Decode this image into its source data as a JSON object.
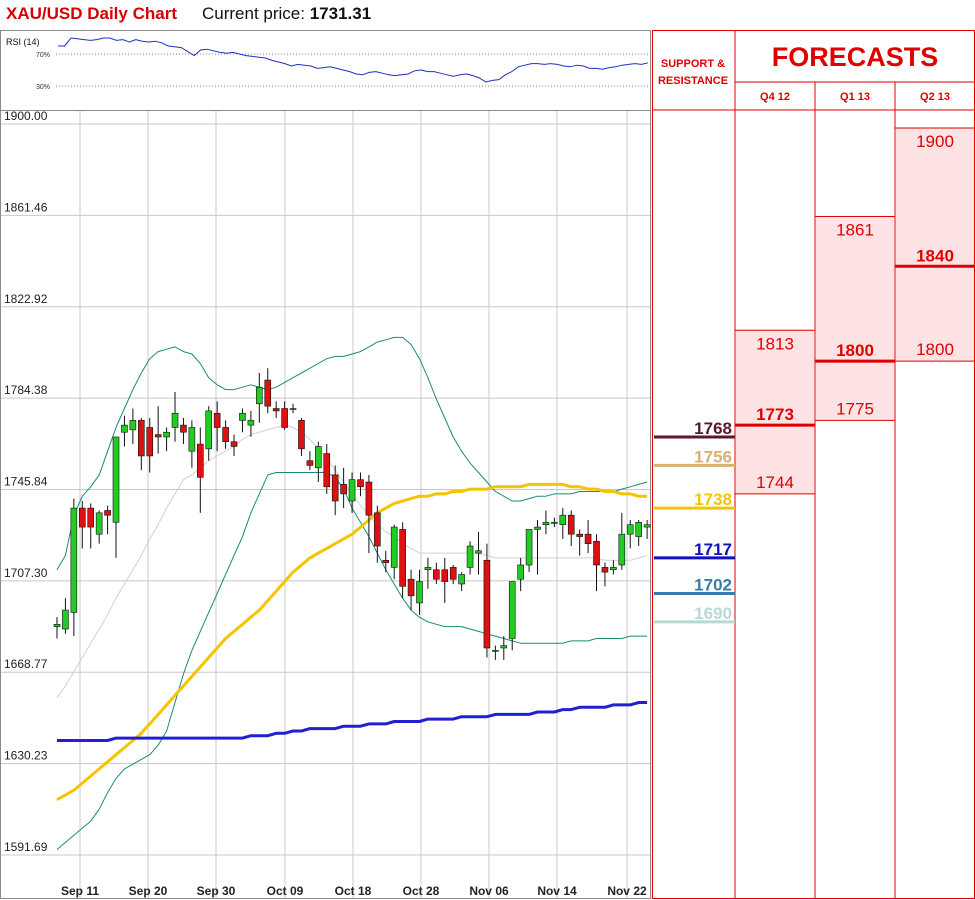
{
  "header": {
    "title": "XAU/USD Daily Chart",
    "price_label": "Current price:",
    "price_value": "1731.31"
  },
  "rsi": {
    "label": "RSI (14)",
    "levels": [
      "70%",
      "30%"
    ],
    "values": [
      80,
      80,
      90,
      89,
      88,
      87,
      88,
      90,
      90,
      87,
      88,
      85,
      88,
      86,
      85,
      86,
      84,
      80,
      79,
      78,
      73,
      68,
      75,
      76,
      74,
      72,
      71,
      72,
      70,
      68,
      67,
      66,
      65,
      62,
      60,
      58,
      55,
      57,
      56,
      55,
      52,
      53,
      54,
      52,
      50,
      48,
      45,
      44,
      47,
      48,
      46,
      44,
      43,
      44,
      45,
      49,
      50,
      48,
      48,
      46,
      44,
      42,
      44,
      45,
      43,
      40,
      35,
      37,
      38,
      44,
      48,
      54,
      56,
      58,
      58,
      57,
      58,
      57,
      55,
      54,
      56,
      55,
      52,
      52,
      51,
      53,
      54,
      56,
      57,
      58,
      57,
      59
    ]
  },
  "chart_data": {
    "type": "candlestick",
    "title": "XAU/USD Daily Chart",
    "ylim": [
      1591.69,
      1900.0
    ],
    "y_ticks": [
      "1900.00",
      "1861.46",
      "1822.92",
      "1784.38",
      "1745.84",
      "1707.30",
      "1668.77",
      "1630.23",
      "1591.69"
    ],
    "x_ticks": [
      "Sep 11",
      "Sep 20",
      "Sep 30",
      "Oct 09",
      "Oct 18",
      "Oct 28",
      "Nov 06",
      "Nov 14",
      "Nov 22"
    ],
    "grid": true,
    "candles": [
      {
        "o": 1688,
        "h": 1692,
        "l": 1683,
        "c": 1689
      },
      {
        "o": 1687,
        "h": 1700,
        "l": 1685,
        "c": 1695
      },
      {
        "o": 1694,
        "h": 1742,
        "l": 1684,
        "c": 1738
      },
      {
        "o": 1738,
        "h": 1741,
        "l": 1721,
        "c": 1730
      },
      {
        "o": 1738,
        "h": 1740,
        "l": 1721,
        "c": 1730
      },
      {
        "o": 1727,
        "h": 1737,
        "l": 1723,
        "c": 1736
      },
      {
        "o": 1737,
        "h": 1739,
        "l": 1727,
        "c": 1735
      },
      {
        "o": 1732,
        "h": 1768,
        "l": 1717,
        "c": 1768
      },
      {
        "o": 1770,
        "h": 1777,
        "l": 1764,
        "c": 1773
      },
      {
        "o": 1771,
        "h": 1780,
        "l": 1765,
        "c": 1775
      },
      {
        "o": 1775,
        "h": 1776,
        "l": 1754,
        "c": 1760
      },
      {
        "o": 1772,
        "h": 1776,
        "l": 1753,
        "c": 1760
      },
      {
        "o": 1769,
        "h": 1781,
        "l": 1761,
        "c": 1768
      },
      {
        "o": 1768,
        "h": 1772,
        "l": 1762,
        "c": 1770
      },
      {
        "o": 1772,
        "h": 1787,
        "l": 1766,
        "c": 1778
      },
      {
        "o": 1773,
        "h": 1776,
        "l": 1765,
        "c": 1770
      },
      {
        "o": 1762,
        "h": 1775,
        "l": 1755,
        "c": 1772
      },
      {
        "o": 1765,
        "h": 1772,
        "l": 1736,
        "c": 1751
      },
      {
        "o": 1763,
        "h": 1781,
        "l": 1758,
        "c": 1779
      },
      {
        "o": 1778,
        "h": 1783,
        "l": 1762,
        "c": 1772
      },
      {
        "o": 1772,
        "h": 1775,
        "l": 1763,
        "c": 1766
      },
      {
        "o": 1766,
        "h": 1769,
        "l": 1760,
        "c": 1764
      },
      {
        "o": 1775,
        "h": 1780,
        "l": 1770,
        "c": 1778
      },
      {
        "o": 1773,
        "h": 1779,
        "l": 1768,
        "c": 1775
      },
      {
        "o": 1782,
        "h": 1795,
        "l": 1774,
        "c": 1789
      },
      {
        "o": 1792,
        "h": 1797,
        "l": 1778,
        "c": 1781
      },
      {
        "o": 1780,
        "h": 1783,
        "l": 1776,
        "c": 1779
      },
      {
        "o": 1780,
        "h": 1783,
        "l": 1771,
        "c": 1772
      },
      {
        "o": 1780,
        "h": 1782,
        "l": 1778,
        "c": 1780
      },
      {
        "o": 1775,
        "h": 1776,
        "l": 1760,
        "c": 1763
      },
      {
        "o": 1758,
        "h": 1762,
        "l": 1754,
        "c": 1756
      },
      {
        "o": 1755,
        "h": 1766,
        "l": 1749,
        "c": 1764
      },
      {
        "o": 1761,
        "h": 1765,
        "l": 1744,
        "c": 1747
      },
      {
        "o": 1752,
        "h": 1756,
        "l": 1735,
        "c": 1741
      },
      {
        "o": 1748,
        "h": 1755,
        "l": 1738,
        "c": 1744
      },
      {
        "o": 1741,
        "h": 1753,
        "l": 1736,
        "c": 1750
      },
      {
        "o": 1750,
        "h": 1753,
        "l": 1743,
        "c": 1747
      },
      {
        "o": 1749,
        "h": 1752,
        "l": 1719,
        "c": 1735
      },
      {
        "o": 1736,
        "h": 1739,
        "l": 1715,
        "c": 1722
      },
      {
        "o": 1716,
        "h": 1720,
        "l": 1711,
        "c": 1715
      },
      {
        "o": 1713,
        "h": 1731,
        "l": 1708,
        "c": 1730
      },
      {
        "o": 1729,
        "h": 1732,
        "l": 1700,
        "c": 1705
      },
      {
        "o": 1708,
        "h": 1712,
        "l": 1695,
        "c": 1701
      },
      {
        "o": 1698,
        "h": 1712,
        "l": 1693,
        "c": 1707
      },
      {
        "o": 1712,
        "h": 1717,
        "l": 1704,
        "c": 1713
      },
      {
        "o": 1712,
        "h": 1715,
        "l": 1706,
        "c": 1708
      },
      {
        "o": 1712,
        "h": 1717,
        "l": 1698,
        "c": 1707
      },
      {
        "o": 1713,
        "h": 1714,
        "l": 1706,
        "c": 1708
      },
      {
        "o": 1706,
        "h": 1711,
        "l": 1703,
        "c": 1710
      },
      {
        "o": 1713,
        "h": 1724,
        "l": 1710,
        "c": 1722
      },
      {
        "o": 1719,
        "h": 1728,
        "l": 1710,
        "c": 1720
      },
      {
        "o": 1716,
        "h": 1723,
        "l": 1675,
        "c": 1679
      },
      {
        "o": 1678,
        "h": 1680,
        "l": 1674,
        "c": 1678
      },
      {
        "o": 1679,
        "h": 1684,
        "l": 1674,
        "c": 1680
      },
      {
        "o": 1683,
        "h": 1707,
        "l": 1678,
        "c": 1707
      },
      {
        "o": 1708,
        "h": 1717,
        "l": 1703,
        "c": 1714
      },
      {
        "o": 1714,
        "h": 1729,
        "l": 1711,
        "c": 1729
      },
      {
        "o": 1729,
        "h": 1733,
        "l": 1710,
        "c": 1730
      },
      {
        "o": 1731,
        "h": 1737,
        "l": 1727,
        "c": 1732
      },
      {
        "o": 1732,
        "h": 1734,
        "l": 1730,
        "c": 1732
      },
      {
        "o": 1731,
        "h": 1738,
        "l": 1725,
        "c": 1735
      },
      {
        "o": 1735,
        "h": 1737,
        "l": 1722,
        "c": 1727
      },
      {
        "o": 1727,
        "h": 1729,
        "l": 1718,
        "c": 1726
      },
      {
        "o": 1727,
        "h": 1733,
        "l": 1719,
        "c": 1723
      },
      {
        "o": 1724,
        "h": 1727,
        "l": 1703,
        "c": 1714
      },
      {
        "o": 1713,
        "h": 1715,
        "l": 1705,
        "c": 1711
      },
      {
        "o": 1712,
        "h": 1716,
        "l": 1710,
        "c": 1713
      },
      {
        "o": 1714,
        "h": 1736,
        "l": 1712,
        "c": 1727
      },
      {
        "o": 1727,
        "h": 1733,
        "l": 1721,
        "c": 1731
      },
      {
        "o": 1726,
        "h": 1733,
        "l": 1722,
        "c": 1732
      },
      {
        "o": 1730,
        "h": 1733,
        "l": 1725,
        "c": 1731
      }
    ],
    "bollinger_upper": [
      1712,
      1718,
      1735,
      1743,
      1747,
      1752,
      1762,
      1772,
      1780,
      1788,
      1795,
      1801,
      1804,
      1805,
      1806,
      1804,
      1803,
      1799,
      1793,
      1790,
      1788,
      1788,
      1789,
      1790,
      1789,
      1788,
      1789,
      1791,
      1793,
      1795,
      1797,
      1799,
      1801,
      1802,
      1802,
      1803,
      1804,
      1806,
      1808,
      1809,
      1810,
      1810,
      1807,
      1801,
      1793,
      1784,
      1776,
      1768,
      1762,
      1757,
      1753,
      1749,
      1745,
      1743,
      1741,
      1741,
      1742,
      1743,
      1743,
      1744,
      1744,
      1744,
      1745,
      1745,
      1745,
      1745,
      1745,
      1746,
      1747,
      1748,
      1749
    ],
    "bollinger_mid": [
      1658,
      1663,
      1669,
      1675,
      1681,
      1687,
      1693,
      1700,
      1706,
      1712,
      1718,
      1725,
      1731,
      1738,
      1744,
      1750,
      1752,
      1755,
      1758,
      1760,
      1762,
      1764,
      1767,
      1769,
      1770,
      1771,
      1772,
      1773,
      1772,
      1770,
      1767,
      1763,
      1759,
      1754,
      1749,
      1744,
      1739,
      1735,
      1731,
      1728,
      1726,
      1723,
      1721,
      1719,
      1719,
      1719,
      1719,
      1719,
      1719,
      1719,
      1719,
      1718,
      1717,
      1717,
      1717,
      1717,
      1717,
      1717,
      1717,
      1717,
      1717,
      1717,
      1717,
      1717,
      1717,
      1716,
      1716,
      1716,
      1716,
      1717,
      1718
    ],
    "bollinger_lower": [
      1594,
      1597,
      1600,
      1603,
      1606,
      1611,
      1618,
      1624,
      1628,
      1630,
      1632,
      1634,
      1638,
      1644,
      1656,
      1668,
      1678,
      1686,
      1694,
      1702,
      1710,
      1718,
      1726,
      1736,
      1744,
      1752,
      1753,
      1753,
      1753,
      1753,
      1753,
      1753,
      1753,
      1751,
      1746,
      1738,
      1732,
      1726,
      1719,
      1712,
      1706,
      1700,
      1695,
      1692,
      1690,
      1689,
      1688,
      1688,
      1688,
      1687,
      1686,
      1685,
      1684,
      1683,
      1682,
      1681,
      1681,
      1681,
      1681,
      1681,
      1681,
      1682,
      1682,
      1682,
      1683,
      1683,
      1683,
      1683,
      1684,
      1684,
      1684
    ],
    "ma_yellow": [
      1615,
      1617,
      1619,
      1622,
      1625,
      1628,
      1631,
      1634,
      1637,
      1640,
      1643,
      1647,
      1651,
      1655,
      1659,
      1663,
      1667,
      1671,
      1675,
      1679,
      1683,
      1686,
      1689,
      1692,
      1695,
      1699,
      1703,
      1707,
      1711,
      1714,
      1717,
      1719,
      1721,
      1723,
      1725,
      1727,
      1730,
      1733,
      1736,
      1738,
      1740,
      1741,
      1742,
      1743,
      1743,
      1744,
      1744,
      1745,
      1745,
      1746,
      1746,
      1746,
      1747,
      1747,
      1747,
      1747,
      1748,
      1748,
      1748,
      1748,
      1748,
      1747,
      1747,
      1746,
      1746,
      1745,
      1745,
      1744,
      1744,
      1743,
      1743
    ],
    "ma_blue": [
      1640,
      1640,
      1640,
      1640,
      1640,
      1640,
      1640,
      1641,
      1641,
      1641,
      1641,
      1641,
      1641,
      1641,
      1641,
      1641,
      1641,
      1641,
      1641,
      1641,
      1641,
      1641,
      1641,
      1642,
      1642,
      1642,
      1643,
      1643,
      1644,
      1644,
      1645,
      1645,
      1645,
      1645,
      1646,
      1646,
      1646,
      1647,
      1647,
      1647,
      1648,
      1648,
      1648,
      1648,
      1649,
      1649,
      1649,
      1649,
      1650,
      1650,
      1650,
      1650,
      1651,
      1651,
      1651,
      1651,
      1651,
      1652,
      1652,
      1652,
      1653,
      1653,
      1654,
      1654,
      1654,
      1654,
      1655,
      1655,
      1655,
      1656,
      1656
    ]
  },
  "side": {
    "support_title_line1": "SUPPORT &",
    "support_title_line2": "RESISTANCE",
    "forecast_title": "FORECASTS",
    "quarters": [
      "Q4 12",
      "Q1 13",
      "Q2 13"
    ],
    "levels": [
      {
        "label": "1768",
        "value": 1768,
        "color": "#5a1a2a"
      },
      {
        "label": "1756",
        "value": 1756,
        "color": "#d8b070"
      },
      {
        "label": "1738",
        "value": 1738,
        "color": "#f5c400"
      },
      {
        "label": "1717",
        "value": 1717,
        "color": "#1010c0"
      },
      {
        "label": "1702",
        "value": 1702,
        "color": "#3b7ba8"
      },
      {
        "label": "1690",
        "value": 1690,
        "color": "#b7d9d5"
      }
    ],
    "forecasts": [
      {
        "high": "1813",
        "mid": "1773",
        "low": "1744",
        "high_v": 1813,
        "mid_v": 1773,
        "low_v": 1744
      },
      {
        "high": "1861",
        "mid": "1800",
        "low": "1775",
        "high_v": 1861,
        "mid_v": 1800,
        "low_v": 1775
      },
      {
        "high": "1900",
        "mid": "1840",
        "low": "1800",
        "high_v": 1900,
        "mid_v": 1840,
        "low_v": 1800
      }
    ],
    "colors": {
      "accent": "#e00000",
      "shade": "#fde3e3"
    }
  }
}
